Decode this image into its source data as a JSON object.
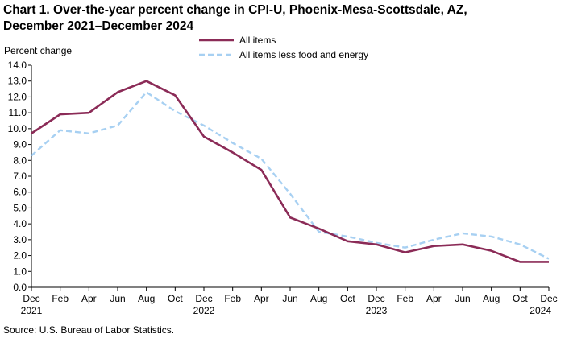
{
  "header": {
    "title_line1": "Chart 1. Over-the-year percent change in CPI-U, Phoenix-Mesa-Scottsdale,  AZ,",
    "title_line2": "December 2021–December  2024"
  },
  "footer": {
    "source": "Source: U.S. Bureau  of Labor Statistics."
  },
  "chart_data": {
    "type": "line",
    "title": "Over-the-year percent change in CPI-U, Phoenix-Mesa-Scottsdale, AZ, December 2021–December 2024",
    "ylabel": "Percent change",
    "xlabel": "",
    "ylim": [
      0,
      14
    ],
    "y_ticks": [
      "0.0",
      "1.0",
      "2.0",
      "3.0",
      "4.0",
      "5.0",
      "6.0",
      "7.0",
      "8.0",
      "9.0",
      "10.0",
      "11.0",
      "12.0",
      "13.0",
      "14.0"
    ],
    "grid": false,
    "legend_position": "top-right",
    "x_ticks": [
      {
        "label": "Dec",
        "year": "2021"
      },
      {
        "label": "Feb",
        "year": ""
      },
      {
        "label": "Apr",
        "year": ""
      },
      {
        "label": "Jun",
        "year": ""
      },
      {
        "label": "Aug",
        "year": ""
      },
      {
        "label": "Oct",
        "year": ""
      },
      {
        "label": "Dec",
        "year": "2022"
      },
      {
        "label": "Feb",
        "year": ""
      },
      {
        "label": "Apr",
        "year": ""
      },
      {
        "label": "Jun",
        "year": ""
      },
      {
        "label": "Aug",
        "year": ""
      },
      {
        "label": "Oct",
        "year": ""
      },
      {
        "label": "Dec",
        "year": "2023"
      },
      {
        "label": "Feb",
        "year": ""
      },
      {
        "label": "Apr",
        "year": ""
      },
      {
        "label": "Jun",
        "year": ""
      },
      {
        "label": "Aug",
        "year": ""
      },
      {
        "label": "Oct",
        "year": ""
      },
      {
        "label": "Dec",
        "year": "2024"
      }
    ],
    "series": [
      {
        "name": "All items",
        "color": "#8b2b57",
        "style": "solid",
        "values": [
          9.7,
          10.9,
          11.0,
          12.3,
          13.0,
          12.1,
          9.5,
          8.5,
          7.4,
          4.4,
          3.7,
          2.9,
          2.7,
          2.2,
          2.6,
          2.7,
          2.3,
          1.6,
          1.6
        ]
      },
      {
        "name": "All items less food and energy",
        "color": "#a7d0f2",
        "style": "dashed",
        "values": [
          8.3,
          9.9,
          9.7,
          10.2,
          12.3,
          11.1,
          10.2,
          9.1,
          8.1,
          5.9,
          3.5,
          3.2,
          2.8,
          2.5,
          3.0,
          3.4,
          3.2,
          2.7,
          1.8
        ]
      }
    ]
  }
}
